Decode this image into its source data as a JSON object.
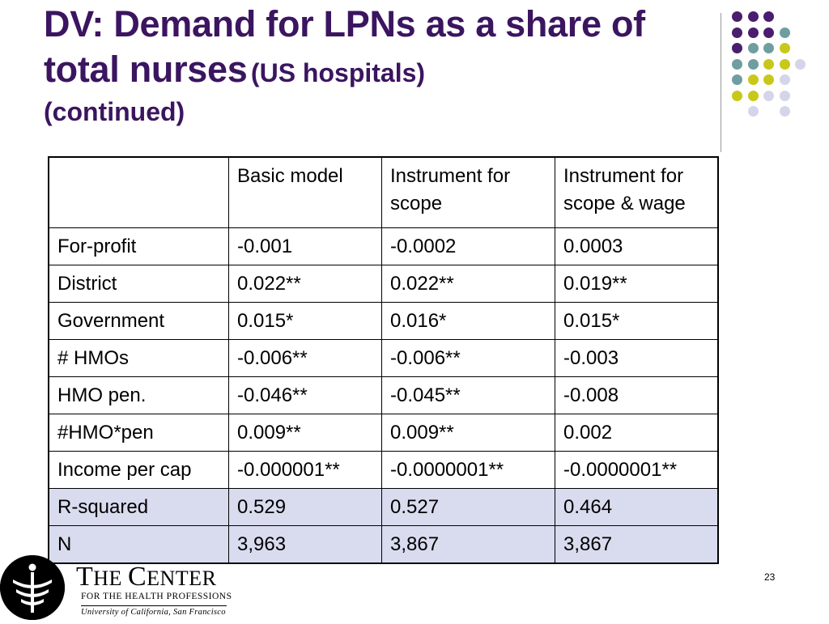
{
  "title": {
    "main": "DV: Demand for LPNs as a share of total nurses",
    "qualifier": "(US hospitals)",
    "continued": "(continued)"
  },
  "table": {
    "headers": [
      "",
      "Basic model",
      "Instrument for scope",
      "Instrument for scope & wage"
    ],
    "rows": [
      [
        "For-profit",
        "-0.001",
        "-0.0002",
        "0.0003"
      ],
      [
        "District",
        "0.022**",
        "0.022**",
        "0.019**"
      ],
      [
        "Government",
        "0.015*",
        "0.016*",
        "0.015*"
      ],
      [
        "# HMOs",
        "-0.006**",
        "-0.006**",
        "-0.003"
      ],
      [
        "HMO pen.",
        "-0.046**",
        "-0.045**",
        "-0.008"
      ],
      [
        "#HMO*pen",
        "0.009**",
        "0.009**",
        "0.002"
      ],
      [
        "Income per cap",
        "-0.000001**",
        "-0.0000001**",
        "-0.0000001**"
      ],
      [
        "R-squared",
        "0.529",
        "0.527",
        "0.464"
      ],
      [
        "N",
        "3,963",
        "3,867",
        "3,867"
      ]
    ]
  },
  "logo": {
    "name_t": "T",
    "name_he": "HE ",
    "name_c": "C",
    "name_enter": "ENTER",
    "subtitle": "FOR THE HEALTH PROFESSIONS",
    "university": "University of California, San Francisco"
  },
  "slide_number": "23",
  "colors": {
    "title": "#3b1560",
    "shaded_rows": "#d9dbee",
    "dot_purple": "#4a1e6e",
    "dot_teal": "#6f9ea0",
    "dot_yellow": "#c8c81a",
    "dot_lavender": "#d5d5ea"
  },
  "decoration": {
    "dot_grid": [
      [
        "purple",
        "purple",
        "purple",
        ""
      ],
      [
        "purple",
        "purple",
        "purple",
        "teal"
      ],
      [
        "purple",
        "teal",
        "teal",
        "yellow"
      ],
      [
        "teal",
        "teal",
        "yellow",
        "yellow",
        "lavender"
      ],
      [
        "teal",
        "yellow",
        "yellow",
        "lavender"
      ],
      [
        "yellow",
        "yellow",
        "lavender",
        "lavender"
      ],
      [
        "",
        "lavender",
        "",
        "lavender"
      ]
    ]
  }
}
